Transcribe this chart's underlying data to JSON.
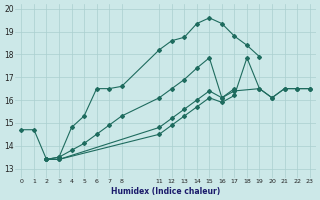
{
  "xlabel": "Humidex (Indice chaleur)",
  "bg_color": "#cce8e8",
  "grid_color": "#aacfcf",
  "line_color": "#1e6b5e",
  "xlim": [
    -0.5,
    23.5
  ],
  "ylim": [
    12.6,
    20.2
  ],
  "xticks": [
    0,
    1,
    2,
    3,
    4,
    5,
    6,
    7,
    8,
    11,
    12,
    13,
    14,
    15,
    16,
    17,
    18,
    19,
    20,
    21,
    22,
    23
  ],
  "yticks": [
    13,
    14,
    15,
    16,
    17,
    18,
    19,
    20
  ],
  "line1_x": [
    0,
    1,
    2,
    3,
    4,
    5,
    6,
    7,
    8,
    11,
    12,
    13,
    14,
    15,
    16,
    17,
    18,
    19
  ],
  "line1_y": [
    14.7,
    14.7,
    13.4,
    13.5,
    14.8,
    15.3,
    16.5,
    16.5,
    16.6,
    18.2,
    18.6,
    18.75,
    19.35,
    19.6,
    19.35,
    18.8,
    18.4,
    17.9
  ],
  "line2_x": [
    2,
    3,
    4,
    5,
    6,
    7,
    8,
    11,
    12,
    13,
    14,
    15,
    16,
    17
  ],
  "line2_y": [
    13.4,
    13.5,
    13.8,
    14.1,
    14.5,
    14.9,
    15.3,
    16.1,
    16.5,
    16.9,
    17.4,
    17.85,
    16.1,
    16.5
  ],
  "line3_x": [
    2,
    3,
    11,
    12,
    13,
    14,
    15,
    16,
    17,
    19,
    20,
    21,
    22,
    23
  ],
  "line3_y": [
    13.4,
    13.4,
    14.8,
    15.2,
    15.6,
    16.0,
    16.4,
    16.1,
    16.4,
    16.5,
    16.1,
    16.5,
    16.5,
    16.5
  ],
  "line4_x": [
    2,
    3,
    11,
    12,
    13,
    14,
    15,
    16,
    17,
    18,
    19,
    20,
    21,
    22,
    23
  ],
  "line4_y": [
    13.4,
    13.4,
    14.5,
    14.9,
    15.3,
    15.7,
    16.1,
    15.9,
    16.2,
    17.85,
    16.5,
    16.1,
    16.5,
    16.5,
    16.5
  ]
}
